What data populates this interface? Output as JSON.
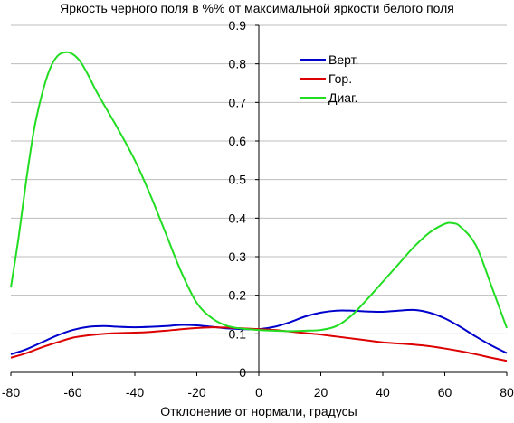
{
  "chart_data": {
    "type": "line",
    "title": "Яркость черного поля в %% от максимальной яркости белого поля",
    "xlabel": "Отклонение от нормали, градусы",
    "ylabel": "",
    "xlim": [
      -80,
      80
    ],
    "ylim": [
      0,
      0.9
    ],
    "x_ticks": [
      "-80",
      "-60",
      "-40",
      "-20",
      "0",
      "20",
      "40",
      "60",
      "80"
    ],
    "y_ticks": [
      "0",
      "0.1",
      "0.2",
      "0.3",
      "0.4",
      "0.5",
      "0.6",
      "0.7",
      "0.8",
      "0.9"
    ],
    "grid": "horizontal",
    "legend_position": "top-right",
    "series": [
      {
        "name": "Верт.",
        "color": "#0000cc",
        "x": [
          -80,
          -75,
          -70,
          -65,
          -60,
          -55,
          -50,
          -45,
          -40,
          -35,
          -30,
          -25,
          -20,
          -15,
          -10,
          -5,
          0,
          5,
          10,
          15,
          20,
          25,
          30,
          35,
          40,
          45,
          50,
          55,
          60,
          65,
          70,
          75,
          80
        ],
        "y": [
          0.047,
          0.06,
          0.078,
          0.096,
          0.11,
          0.118,
          0.12,
          0.118,
          0.117,
          0.118,
          0.12,
          0.123,
          0.122,
          0.118,
          0.114,
          0.112,
          0.112,
          0.118,
          0.13,
          0.145,
          0.155,
          0.16,
          0.16,
          0.158,
          0.157,
          0.16,
          0.162,
          0.155,
          0.14,
          0.118,
          0.093,
          0.07,
          0.05
        ]
      },
      {
        "name": "Гор.",
        "color": "#dd0000",
        "x": [
          -80,
          -75,
          -70,
          -65,
          -60,
          -55,
          -50,
          -45,
          -40,
          -35,
          -30,
          -25,
          -20,
          -15,
          -10,
          -5,
          0,
          5,
          10,
          15,
          20,
          25,
          30,
          35,
          40,
          45,
          50,
          55,
          60,
          65,
          70,
          75,
          80
        ],
        "y": [
          0.038,
          0.05,
          0.065,
          0.078,
          0.09,
          0.096,
          0.1,
          0.102,
          0.103,
          0.105,
          0.108,
          0.112,
          0.115,
          0.117,
          0.116,
          0.114,
          0.112,
          0.11,
          0.106,
          0.102,
          0.098,
          0.093,
          0.088,
          0.083,
          0.078,
          0.075,
          0.072,
          0.068,
          0.062,
          0.055,
          0.047,
          0.038,
          0.03
        ]
      },
      {
        "name": "Диаг.",
        "color": "#22dd22",
        "x": [
          -80,
          -77.5,
          -75,
          -72.5,
          -70,
          -67.5,
          -65,
          -62.5,
          -60,
          -57.5,
          -55,
          -52.5,
          -50,
          -45,
          -40,
          -35,
          -30,
          -25,
          -20,
          -15,
          -10,
          -5,
          0,
          5,
          10,
          15,
          20,
          25,
          30,
          35,
          40,
          45,
          50,
          55,
          60,
          62.5,
          65,
          70,
          75,
          80
        ],
        "y": [
          0.22,
          0.35,
          0.5,
          0.63,
          0.72,
          0.785,
          0.82,
          0.83,
          0.825,
          0.805,
          0.77,
          0.73,
          0.695,
          0.625,
          0.55,
          0.46,
          0.36,
          0.26,
          0.18,
          0.14,
          0.12,
          0.113,
          0.11,
          0.108,
          0.107,
          0.108,
          0.11,
          0.12,
          0.148,
          0.19,
          0.235,
          0.28,
          0.325,
          0.362,
          0.385,
          0.387,
          0.378,
          0.33,
          0.225,
          0.115
        ]
      }
    ]
  }
}
